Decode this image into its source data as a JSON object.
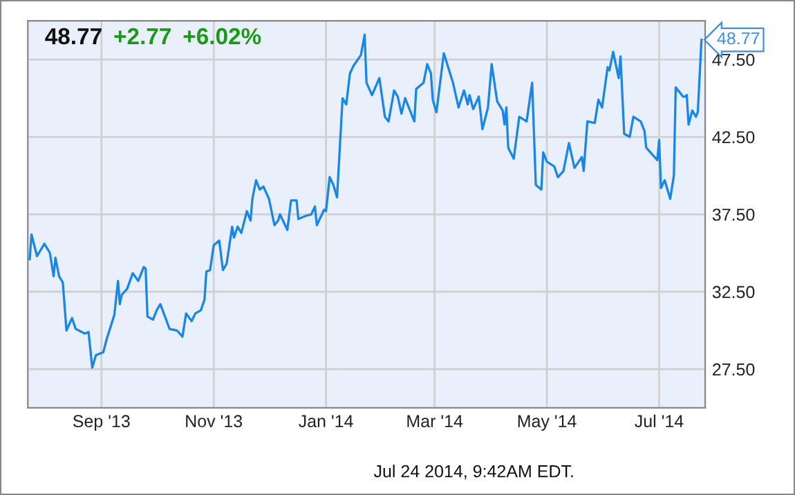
{
  "chart_data": {
    "type": "line",
    "title": "48.77",
    "annotations": [
      "+2.77",
      "+6.02%",
      {
        "text": "48.77",
        "x": "2014-07-24",
        "y": 48.77
      },
      "Jul 24 2014, 9:42AM EDT."
    ],
    "x": [
      "2013-07-24",
      "2013-07-25",
      "2013-07-28",
      "2013-08-01",
      "2013-08-04",
      "2013-08-06",
      "2013-08-07",
      "2013-08-09",
      "2013-08-11",
      "2013-08-13",
      "2013-08-16",
      "2013-08-18",
      "2013-08-23",
      "2013-08-25",
      "2013-08-27",
      "2013-08-29",
      "2013-09-02",
      "2013-09-04",
      "2013-09-08",
      "2013-09-10",
      "2013-09-11",
      "2013-09-12",
      "2013-09-15",
      "2013-09-18",
      "2013-09-21",
      "2013-09-24",
      "2013-09-25",
      "2013-09-26",
      "2013-09-29",
      "2013-10-01",
      "2013-10-03",
      "2013-10-08",
      "2013-10-12",
      "2013-10-15",
      "2013-10-17",
      "2013-10-20",
      "2013-10-22",
      "2013-10-25",
      "2013-10-27",
      "2013-10-28",
      "2013-10-30",
      "2013-11-01",
      "2013-11-04",
      "2013-11-06",
      "2013-11-08",
      "2013-11-11",
      "2013-11-12",
      "2013-11-14",
      "2013-11-16",
      "2013-11-19",
      "2013-11-21",
      "2013-11-22",
      "2013-11-24",
      "2013-11-26",
      "2013-11-28",
      "2013-12-01",
      "2013-12-04",
      "2013-12-06",
      "2013-12-07",
      "2013-12-11",
      "2013-12-13",
      "2013-12-16",
      "2013-12-17",
      "2013-12-21",
      "2013-12-24",
      "2013-12-26",
      "2013-12-27",
      "2013-12-31",
      "2014-01-01",
      "2014-01-03",
      "2014-01-05",
      "2014-01-07",
      "2014-01-10",
      "2014-01-12",
      "2014-01-14",
      "2014-01-16",
      "2014-01-20",
      "2014-01-22",
      "2014-01-23",
      "2014-01-26",
      "2014-01-30",
      "2014-02-02",
      "2014-02-04",
      "2014-02-07",
      "2014-02-09",
      "2014-02-11",
      "2014-02-13",
      "2014-02-18",
      "2014-02-19",
      "2014-02-23",
      "2014-02-25",
      "2014-02-27",
      "2014-02-28",
      "2014-03-02",
      "2014-03-06",
      "2014-03-11",
      "2014-03-14",
      "2014-03-17",
      "2014-03-19",
      "2014-03-20",
      "2014-03-22",
      "2014-03-25",
      "2014-03-27",
      "2014-03-30",
      "2014-04-01",
      "2014-04-04",
      "2014-04-07",
      "2014-04-08",
      "2014-04-09",
      "2014-04-10",
      "2014-04-13",
      "2014-04-16",
      "2014-04-20",
      "2014-04-23",
      "2014-04-25",
      "2014-04-28",
      "2014-04-29",
      "2014-05-01",
      "2014-05-05",
      "2014-05-07",
      "2014-05-10",
      "2014-05-13",
      "2014-05-16",
      "2014-05-20",
      "2014-05-21",
      "2014-05-23",
      "2014-05-27",
      "2014-05-29",
      "2014-05-31",
      "2014-06-03",
      "2014-06-04",
      "2014-06-06",
      "2014-06-09",
      "2014-06-10",
      "2014-06-12",
      "2014-06-15",
      "2014-06-17",
      "2014-06-21",
      "2014-06-23",
      "2014-06-24",
      "2014-06-30",
      "2014-07-01",
      "2014-07-02",
      "2014-07-04",
      "2014-07-07",
      "2014-07-09",
      "2014-07-10",
      "2014-07-14",
      "2014-07-15",
      "2014-07-16",
      "2014-07-17",
      "2014-07-19",
      "2014-07-21",
      "2014-07-22",
      "2014-07-24"
    ],
    "series": [
      {
        "color": "#1a87e6",
        "values": [
          34.6,
          36.2,
          34.8,
          35.6,
          35.0,
          33.5,
          34.7,
          33.5,
          33.1,
          30.0,
          30.8,
          30.1,
          29.8,
          29.9,
          27.6,
          28.4,
          28.6,
          29.5,
          31.0,
          33.2,
          31.7,
          32.3,
          32.7,
          33.7,
          33.2,
          34.1,
          34.0,
          30.9,
          30.7,
          31.3,
          31.7,
          30.1,
          30.0,
          29.6,
          31.1,
          30.6,
          31.1,
          31.3,
          32.0,
          33.8,
          33.9,
          35.5,
          35.8,
          33.9,
          34.3,
          36.7,
          36.0,
          36.7,
          36.3,
          37.7,
          37.1,
          38.5,
          39.7,
          39.1,
          39.3,
          38.5,
          36.8,
          37.1,
          37.5,
          36.5,
          38.4,
          38.4,
          37.2,
          37.4,
          37.5,
          38.0,
          36.8,
          37.8,
          37.7,
          39.9,
          39.4,
          38.6,
          45.0,
          44.6,
          46.6,
          47.1,
          47.8,
          49.1,
          46.0,
          45.2,
          46.3,
          43.8,
          43.5,
          45.5,
          45.1,
          44.0,
          45.0,
          43.5,
          45.6,
          46.0,
          47.2,
          46.6,
          44.9,
          44.1,
          47.9,
          46.0,
          44.4,
          45.5,
          44.6,
          45.2,
          44.3,
          45.1,
          43.0,
          44.4,
          47.2,
          44.8,
          44.2,
          43.3,
          44.4,
          41.8,
          41.1,
          43.8,
          43.5,
          46.0,
          39.4,
          39.1,
          41.5,
          40.9,
          40.6,
          39.9,
          40.3,
          42.1,
          40.5,
          41.2,
          40.3,
          43.5,
          43.4,
          44.9,
          44.4,
          47.0,
          46.8,
          48.0,
          46.3,
          47.7,
          42.7,
          42.5,
          43.8,
          43.5,
          42.9,
          41.8,
          41.0,
          42.3,
          39.2,
          39.7,
          38.5,
          40.0,
          45.7,
          45.1,
          45.1,
          45.2,
          43.3,
          44.2,
          43.8,
          44.1,
          48.77
        ]
      }
    ],
    "xlim": [
      "2013-07-23",
      "2014-07-26"
    ],
    "xticks": [
      {
        "value": "2013-09-01",
        "label": "Sep '13"
      },
      {
        "value": "2013-11-01",
        "label": "Nov '13"
      },
      {
        "value": "2014-01-01",
        "label": "Jan '14"
      },
      {
        "value": "2014-03-01",
        "label": "Mar '14"
      },
      {
        "value": "2014-05-01",
        "label": "May '14"
      },
      {
        "value": "2014-07-01",
        "label": "Jul '14"
      }
    ],
    "ylim": [
      25,
      50
    ],
    "yticks": [
      {
        "value": 27.5,
        "label": "27.50"
      },
      {
        "value": 32.5,
        "label": "32.50"
      },
      {
        "value": 37.5,
        "label": "37.50"
      },
      {
        "value": 42.5,
        "label": "42.50"
      },
      {
        "value": 47.5,
        "label": "47.50"
      }
    ],
    "grid": true,
    "marker": "none",
    "line_style": "solid"
  }
}
